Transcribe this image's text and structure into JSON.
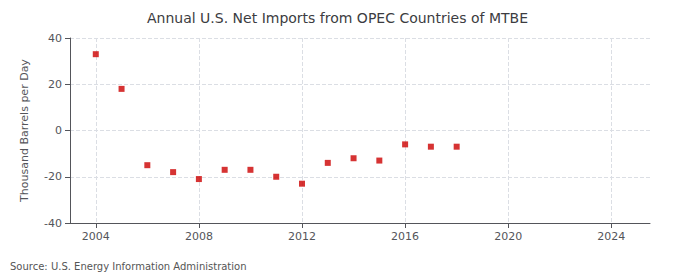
{
  "chart_data": {
    "type": "scatter",
    "title": "Annual U.S. Net Imports from OPEC Countries of MTBE",
    "y_label": "Thousand Barrels per Day",
    "annotations": [
      "Source: U.S. Energy Information Administration"
    ],
    "x": [
      2004,
      2005,
      2006,
      2007,
      2008,
      2009,
      2010,
      2011,
      2012,
      2013,
      2014,
      2015,
      2016,
      2017,
      2018
    ],
    "values": [
      33,
      18,
      -15,
      -18,
      -21,
      -17,
      -17,
      -20,
      -23,
      -14,
      -12,
      -13,
      -6,
      -7,
      -7
    ],
    "color": "#cc0000",
    "marker": "square",
    "xlim": [
      2003.0,
      2025.5
    ],
    "ylim": [
      -40,
      40
    ],
    "xticks": [
      2004,
      2008,
      2012,
      2016,
      2020,
      2024
    ],
    "yticks": [
      -40,
      -20,
      0,
      20,
      40
    ],
    "grid": true
  }
}
